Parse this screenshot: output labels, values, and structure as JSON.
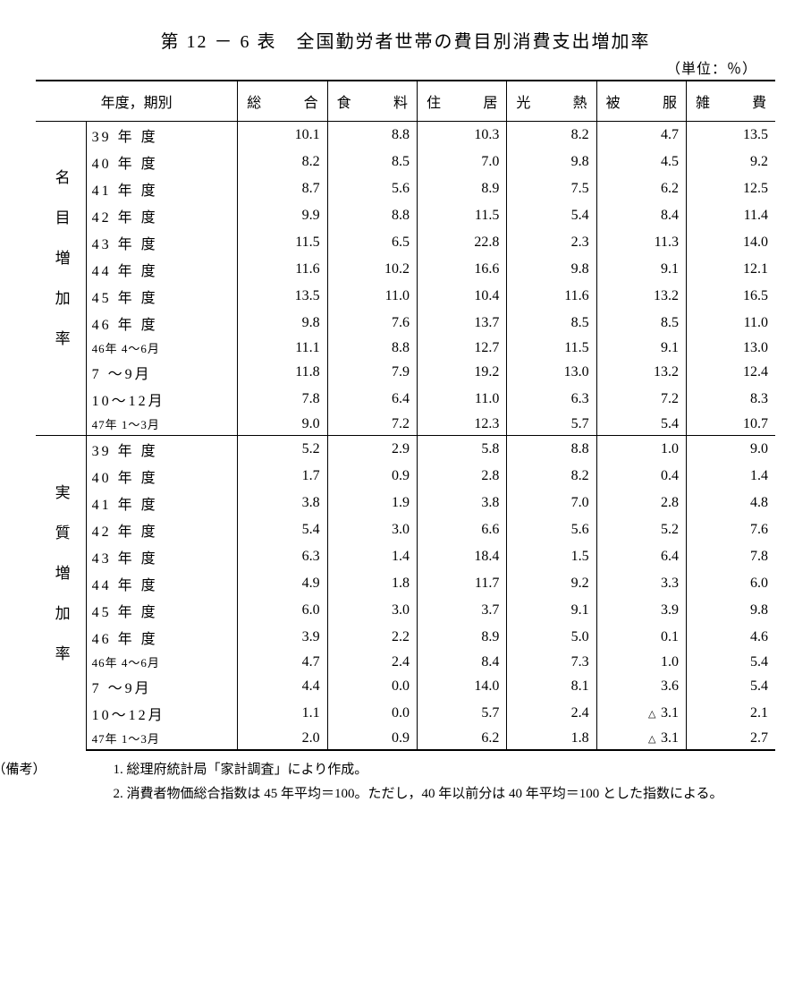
{
  "title": "第 12 － 6 表　全国勤労者世帯の費目別消費支出増加率",
  "unit": "（単位：％）",
  "header": {
    "period": "年度，期別",
    "cols": [
      "総合",
      "食料",
      "住居",
      "光熱",
      "被服",
      "雑費"
    ]
  },
  "sections": [
    {
      "label": "名目増加率",
      "rows": [
        {
          "period": "39 年 度",
          "small": false,
          "v": [
            "10.1",
            "8.8",
            "10.3",
            "8.2",
            "4.7",
            "13.5"
          ],
          "m": [
            "",
            "",
            "",
            "",
            "",
            ""
          ]
        },
        {
          "period": "40 年 度",
          "small": false,
          "v": [
            "8.2",
            "8.5",
            "7.0",
            "9.8",
            "4.5",
            "9.2"
          ],
          "m": [
            "",
            "",
            "",
            "",
            "",
            ""
          ]
        },
        {
          "period": "41 年 度",
          "small": false,
          "v": [
            "8.7",
            "5.6",
            "8.9",
            "7.5",
            "6.2",
            "12.5"
          ],
          "m": [
            "",
            "",
            "",
            "",
            "",
            ""
          ]
        },
        {
          "period": "42 年 度",
          "small": false,
          "v": [
            "9.9",
            "8.8",
            "11.5",
            "5.4",
            "8.4",
            "11.4"
          ],
          "m": [
            "",
            "",
            "",
            "",
            "",
            ""
          ]
        },
        {
          "period": "43 年 度",
          "small": false,
          "v": [
            "11.5",
            "6.5",
            "22.8",
            "2.3",
            "11.3",
            "14.0"
          ],
          "m": [
            "",
            "",
            "",
            "",
            "",
            ""
          ]
        },
        {
          "period": "44 年 度",
          "small": false,
          "v": [
            "11.6",
            "10.2",
            "16.6",
            "9.8",
            "9.1",
            "12.1"
          ],
          "m": [
            "",
            "",
            "",
            "",
            "",
            ""
          ]
        },
        {
          "period": "45 年 度",
          "small": false,
          "v": [
            "13.5",
            "11.0",
            "10.4",
            "11.6",
            "13.2",
            "16.5"
          ],
          "m": [
            "",
            "",
            "",
            "",
            "",
            ""
          ]
        },
        {
          "period": "46 年 度",
          "small": false,
          "v": [
            "9.8",
            "7.6",
            "13.7",
            "8.5",
            "8.5",
            "11.0"
          ],
          "m": [
            "",
            "",
            "",
            "",
            "",
            ""
          ]
        },
        {
          "period": "46年 4～6月",
          "small": true,
          "v": [
            "11.1",
            "8.8",
            "12.7",
            "11.5",
            "9.1",
            "13.0"
          ],
          "m": [
            "",
            "",
            "",
            "",
            "",
            ""
          ]
        },
        {
          "period": "7 ～9月",
          "small": false,
          "v": [
            "11.8",
            "7.9",
            "19.2",
            "13.0",
            "13.2",
            "12.4"
          ],
          "m": [
            "",
            "",
            "",
            "",
            "",
            ""
          ]
        },
        {
          "period": "10～12月",
          "small": false,
          "v": [
            "7.8",
            "6.4",
            "11.0",
            "6.3",
            "7.2",
            "8.3"
          ],
          "m": [
            "",
            "",
            "",
            "",
            "",
            ""
          ]
        },
        {
          "period": "47年 1～3月",
          "small": true,
          "v": [
            "9.0",
            "7.2",
            "12.3",
            "5.7",
            "5.4",
            "10.7"
          ],
          "m": [
            "",
            "",
            "",
            "",
            "",
            ""
          ]
        }
      ]
    },
    {
      "label": "実質増加率",
      "rows": [
        {
          "period": "39 年 度",
          "small": false,
          "v": [
            "5.2",
            "2.9",
            "5.8",
            "8.8",
            "1.0",
            "9.0"
          ],
          "m": [
            "",
            "",
            "",
            "",
            "",
            ""
          ]
        },
        {
          "period": "40 年 度",
          "small": false,
          "v": [
            "1.7",
            "0.9",
            "2.8",
            "8.2",
            "0.4",
            "1.4"
          ],
          "m": [
            "",
            "",
            "",
            "",
            "",
            ""
          ]
        },
        {
          "period": "41 年 度",
          "small": false,
          "v": [
            "3.8",
            "1.9",
            "3.8",
            "7.0",
            "2.8",
            "4.8"
          ],
          "m": [
            "",
            "",
            "",
            "",
            "",
            ""
          ]
        },
        {
          "period": "42 年 度",
          "small": false,
          "v": [
            "5.4",
            "3.0",
            "6.6",
            "5.6",
            "5.2",
            "7.6"
          ],
          "m": [
            "",
            "",
            "",
            "",
            "",
            ""
          ]
        },
        {
          "period": "43 年 度",
          "small": false,
          "v": [
            "6.3",
            "1.4",
            "18.4",
            "1.5",
            "6.4",
            "7.8"
          ],
          "m": [
            "",
            "",
            "",
            "",
            "",
            ""
          ]
        },
        {
          "period": "44 年 度",
          "small": false,
          "v": [
            "4.9",
            "1.8",
            "11.7",
            "9.2",
            "3.3",
            "6.0"
          ],
          "m": [
            "",
            "",
            "",
            "",
            "",
            ""
          ]
        },
        {
          "period": "45 年 度",
          "small": false,
          "v": [
            "6.0",
            "3.0",
            "3.7",
            "9.1",
            "3.9",
            "9.8"
          ],
          "m": [
            "",
            "",
            "",
            "",
            "",
            ""
          ]
        },
        {
          "period": "46 年 度",
          "small": false,
          "v": [
            "3.9",
            "2.2",
            "8.9",
            "5.0",
            "0.1",
            "4.6"
          ],
          "m": [
            "",
            "",
            "",
            "",
            "",
            ""
          ]
        },
        {
          "period": "46年 4～6月",
          "small": true,
          "v": [
            "4.7",
            "2.4",
            "8.4",
            "7.3",
            "1.0",
            "5.4"
          ],
          "m": [
            "",
            "",
            "",
            "",
            "",
            ""
          ]
        },
        {
          "period": "7 ～9月",
          "small": false,
          "v": [
            "4.4",
            "0.0",
            "14.0",
            "8.1",
            "3.6",
            "5.4"
          ],
          "m": [
            "",
            "",
            "",
            "",
            "",
            ""
          ]
        },
        {
          "period": "10～12月",
          "small": false,
          "v": [
            "1.1",
            "0.0",
            "5.7",
            "2.4",
            "3.1",
            "2.1"
          ],
          "m": [
            "",
            "",
            "",
            "",
            "△",
            ""
          ]
        },
        {
          "period": "47年 1～3月",
          "small": true,
          "v": [
            "2.0",
            "0.9",
            "6.2",
            "1.8",
            "3.1",
            "2.7"
          ],
          "m": [
            "",
            "",
            "",
            "",
            "△",
            ""
          ]
        }
      ]
    }
  ],
  "notes": {
    "lead": "（備考）",
    "items": [
      "1.  総理府統計局「家計調査」により作成。",
      "2.  消費者物価総合指数は 45 年平均＝100。ただし，40 年以前分は 40 年平均＝100 とした指数による。"
    ]
  },
  "style": {
    "text_color": "#000000",
    "bg_color": "#ffffff",
    "title_fontsize": 20,
    "body_fontsize": 16,
    "border_color": "#000000"
  }
}
